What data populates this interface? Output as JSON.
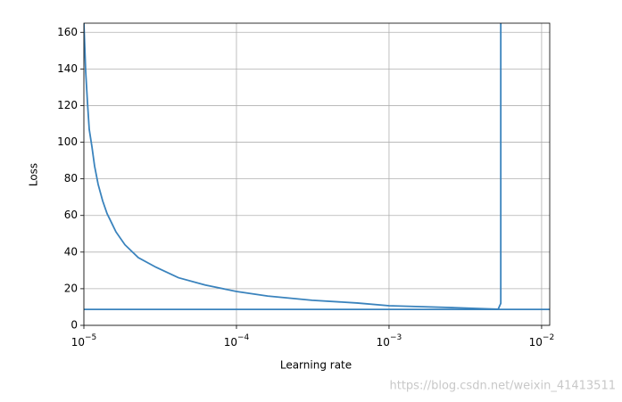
{
  "chart_data": {
    "type": "line",
    "xlabel": "Learning rate",
    "ylabel": "Loss",
    "xscale": "log",
    "grid": true,
    "color": "#3a83bd",
    "x": [
      1e-05,
      1.027e-05,
      1.055e-05,
      1.084e-05,
      1.129e-05,
      1.175e-05,
      1.24e-05,
      1.327e-05,
      1.419e-05,
      1.624e-05,
      1.858e-05,
      2.273e-05,
      2.973e-05,
      4.167e-05,
      6.234e-05,
      0.0001,
      0.00016,
      0.000313,
      0.000618,
      0.001,
      0.00237,
      0.00519,
      0.0054,
      0.0054
    ],
    "values": [
      165,
      139,
      122,
      107,
      97.6,
      87,
      77,
      68,
      61,
      51,
      44,
      37,
      31.7,
      26,
      22,
      18.5,
      16,
      13.7,
      12.2,
      10.7,
      9.8,
      8.8,
      12,
      165
    ],
    "hlines": [
      8.7
    ],
    "xlim": [
      1e-05,
      0.0113
    ],
    "ylim": [
      0,
      165
    ],
    "xticks": [
      {
        "value": 1e-05,
        "label": "10−5"
      },
      {
        "value": 0.0001,
        "label": "10−4"
      },
      {
        "value": 0.001,
        "label": "10−3"
      },
      {
        "value": 0.01,
        "label": "10−2"
      }
    ],
    "yticks": [
      0,
      20,
      40,
      60,
      80,
      100,
      120,
      140,
      160
    ],
    "watermark": "https://blog.csdn.net/weixin_41413511"
  }
}
